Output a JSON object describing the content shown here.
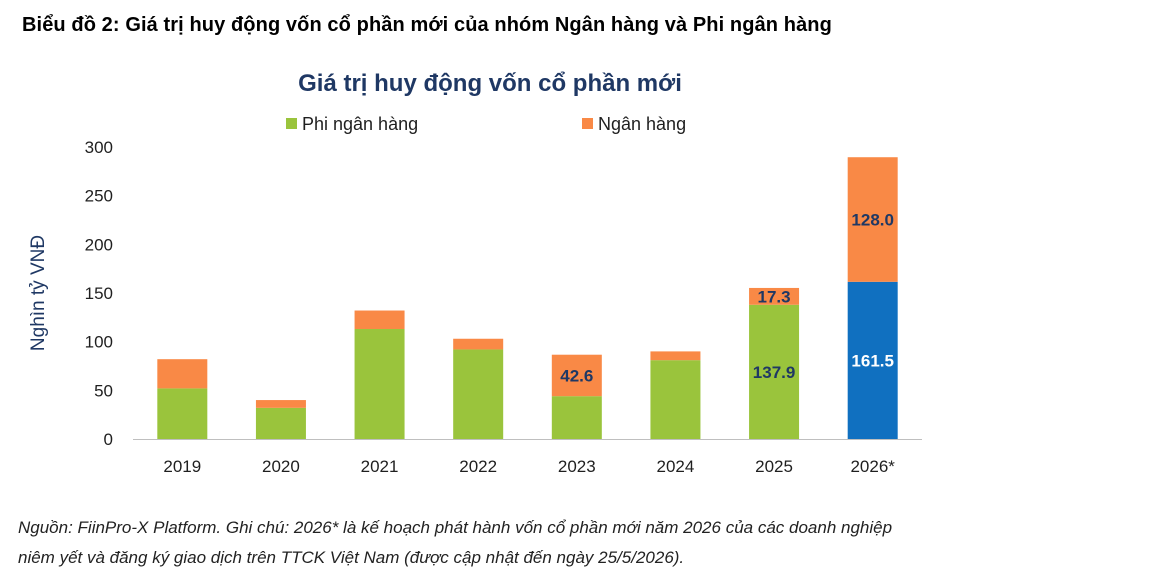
{
  "figure_title": "Biểu đồ 2: Giá trị huy động vốn cổ phần mới của nhóm Ngân hàng và Phi ngân hàng",
  "note_lines": [
    "Nguồn: FiinPro-X Platform. Ghi chú: 2026* là kế hoạch phát hành vốn cổ phần mới năm 2026 của các doanh nghiệp",
    "niêm yết và đăng ký giao dịch trên TTCK Việt Nam (được cập nhật đến ngày 25/5/2026)."
  ],
  "colors": {
    "non_bank": "#9ac43c",
    "bank": "#f98946",
    "highlight_2026": "#1070c0",
    "title": "#1f3864",
    "axis_text": "#1f1f1f"
  },
  "chart_data": {
    "type": "bar",
    "stacked": true,
    "title": "Giá trị huy động vốn cổ phần mới",
    "ylabel": "Nghìn tỷ VNĐ",
    "xlabel": "",
    "ylim": [
      0,
      300
    ],
    "yticks": [
      0,
      50,
      100,
      150,
      200,
      250,
      300
    ],
    "grid": false,
    "legend_position": "top",
    "categories": [
      "2019",
      "2020",
      "2021",
      "2022",
      "2023",
      "2024",
      "2025",
      "2026*"
    ],
    "series": [
      {
        "name": "Phi ngân hàng",
        "values": [
          52,
          32,
          113,
          92,
          44,
          81,
          137.9,
          161.5
        ]
      },
      {
        "name": "Ngân hàng",
        "values": [
          30,
          8,
          19,
          11,
          42.6,
          9,
          17.3,
          128.0
        ]
      }
    ],
    "data_labels": [
      {
        "category": "2023",
        "series": "Ngân hàng",
        "text": "42.6"
      },
      {
        "category": "2025",
        "series": "Phi ngân hàng",
        "text": "137.9"
      },
      {
        "category": "2025",
        "series": "Ngân hàng",
        "text": "17.3"
      },
      {
        "category": "2026*",
        "series": "Phi ngân hàng",
        "text": "161.5"
      },
      {
        "category": "2026*",
        "series": "Ngân hàng",
        "text": "128.0"
      }
    ]
  }
}
